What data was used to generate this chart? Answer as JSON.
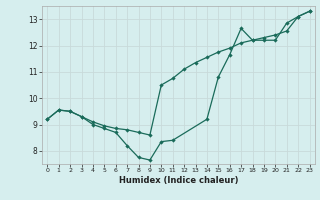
{
  "title": "",
  "xlabel": "Humidex (Indice chaleur)",
  "xlim": [
    -0.5,
    23.5
  ],
  "ylim": [
    7.5,
    13.5
  ],
  "xticks": [
    0,
    1,
    2,
    3,
    4,
    5,
    6,
    7,
    8,
    9,
    10,
    11,
    12,
    13,
    14,
    15,
    16,
    17,
    18,
    19,
    20,
    21,
    22,
    23
  ],
  "yticks": [
    8,
    9,
    10,
    11,
    12,
    13
  ],
  "background_color": "#d6eeee",
  "grid_color": "#bf d8d8",
  "line_color": "#1a6b5a",
  "line1_x": [
    0,
    1,
    2,
    3,
    4,
    5,
    6,
    7,
    8,
    9,
    10,
    11,
    14,
    15,
    16,
    17,
    18,
    19,
    20,
    21,
    22,
    23
  ],
  "line1_y": [
    9.2,
    9.55,
    9.5,
    9.3,
    9.0,
    8.85,
    8.7,
    8.2,
    7.75,
    7.65,
    8.35,
    8.4,
    9.2,
    10.8,
    11.65,
    12.65,
    12.2,
    12.2,
    12.2,
    12.85,
    13.1,
    13.3
  ],
  "line2_x": [
    0,
    1,
    2,
    3,
    4,
    5,
    6,
    7,
    8,
    9,
    10,
    11,
    12,
    13,
    14,
    15,
    16,
    17,
    18,
    19,
    20,
    21,
    22,
    23
  ],
  "line2_y": [
    9.2,
    9.55,
    9.5,
    9.3,
    9.1,
    8.95,
    8.85,
    8.8,
    8.7,
    8.6,
    10.5,
    10.75,
    11.1,
    11.35,
    11.55,
    11.75,
    11.9,
    12.1,
    12.2,
    12.3,
    12.4,
    12.55,
    13.1,
    13.3
  ]
}
